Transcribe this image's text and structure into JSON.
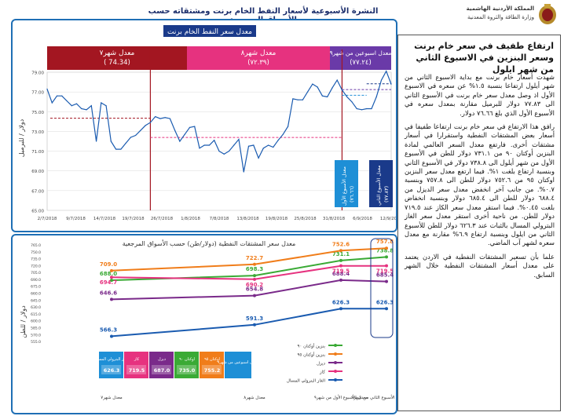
{
  "header": {
    "title": "النشرة الأسبوعية لأسعار النفط الخام برنت ومشتقاته حسب الأسواق المرجعية",
    "ministry_line1": "المملكة الأردنية الهاشمية",
    "ministry_line2": "وزارة الطاقة والثروة المعدنية"
  },
  "top_chart": {
    "title": "معدل سعر النفط الخام برنت",
    "ylabel": "دولار / للبرميل",
    "periods": [
      {
        "label": "معدل شهر٧",
        "value": "( 74.34)",
        "color": "#a31621"
      },
      {
        "label": "معدل شهر٨",
        "value": "(٧٢.٣٩)",
        "color": "#e6327f"
      },
      {
        "label": "معدل اسبوعين من شهر٩",
        "value": "(٧٧.٢٤)",
        "color": "#6a3aa8"
      }
    ],
    "week_boxes": [
      {
        "label": "معدل الأسبوع الأول",
        "value": "(٧٦.٦٦)",
        "color": "#1e8fd6"
      },
      {
        "label": "معدل الأسبوع الثاني",
        "value": "(٧٧.٨٣)",
        "color": "#1a3a8a"
      }
    ]
  },
  "chart_data": [
    {
      "type": "line",
      "title": "معدل سعر النفط الخام برنت",
      "ylabel": "دولار / للبرميل",
      "ylim": [
        65.0,
        79.0
      ],
      "yticks": [
        "79.00",
        "77.00",
        "75.00",
        "73.00",
        "71.00",
        "69.00",
        "67.00",
        "65.00"
      ],
      "xticks": [
        "2/7/2018",
        "9/7/2018",
        "14/7/2018",
        "19/7/2018",
        "26/7/2018",
        "1/8/2018",
        "7/8/2018",
        "13/8/2018",
        "19/8/2018",
        "25/8/2018",
        "31/8/2018",
        "6/9/2018",
        "12/9/2018"
      ],
      "series": [
        {
          "values": [
            77.3,
            75.9,
            76.6,
            76.6,
            76.1,
            75.6,
            75.8,
            75.3,
            75.2,
            75.6,
            72.0,
            75.9,
            75.6,
            72.0,
            71.2,
            71.2,
            71.8,
            72.4,
            72.6,
            73.1,
            73.6,
            73.9,
            74.5,
            74.3,
            74.4,
            74.3,
            73.1,
            72.0,
            72.7,
            73.4,
            73.5,
            71.3,
            71.6,
            71.6,
            72.1,
            71.0,
            70.7,
            71.0,
            71.6,
            72.2,
            68.9,
            71.5,
            71.6,
            70.3,
            71.3,
            71.6,
            71.4,
            72.1,
            72.7,
            73.5,
            76.3,
            76.2,
            76.2,
            77.0,
            77.8,
            77.5,
            76.6,
            76.5,
            77.4,
            78.2,
            77.2,
            76.5,
            76.0,
            75.3,
            75.2,
            75.3,
            75.3,
            76.5,
            78.2,
            79.1,
            77.8
          ]
        }
      ],
      "averages": {
        "july": 74.34,
        "august": 72.39,
        "sept_two_weeks": 77.24,
        "week1": 76.66,
        "week2": 77.83
      }
    },
    {
      "type": "line",
      "title": "معدل سعر المشتقات النفطية (دولار/طن) حسب الأسواق المرجعية",
      "ylabel": "دولار / للطن",
      "ylim": [
        550.0,
        765.0
      ],
      "yticks": [
        "765.0",
        "750.0",
        "735.0",
        "720.0",
        "705.0",
        "690.0",
        "675.0",
        "660.0",
        "645.0",
        "630.0",
        "615.0",
        "600.0",
        "585.0",
        "570.0",
        "555.0"
      ],
      "categories": [
        "معدل شهر٧",
        "معدل شهر٨",
        "معدل الأسبوع الأول من شهر٩",
        "معدل الأسبوع الثاني من شهر٩"
      ],
      "series": [
        {
          "name": "بنزين أوكتان ٩٠",
          "color": "#3aaa35",
          "values": [
            688.0,
            698.3,
            731.1,
            738.8
          ]
        },
        {
          "name": "بنزين أوكتان ٩٥",
          "color": "#f07d1a",
          "values": [
            709.0,
            722.7,
            752.6,
            757.8
          ]
        },
        {
          "name": "ديزل",
          "color": "#7a2a8a",
          "values": [
            646.6,
            654.8,
            688.4,
            685.4
          ]
        },
        {
          "name": "كاز",
          "color": "#e6327f",
          "values": [
            694.7,
            690.2,
            719.5,
            719.5
          ]
        },
        {
          "name": "الغاز البترولي المسال",
          "color": "#1a5bb0",
          "values": [
            566.3,
            591.3,
            626.3,
            626.3
          ]
        }
      ]
    }
  ],
  "bottom_chart": {
    "title": "معدل سعر المشتقات النفطية (دولار/طن) حسب الأسواق المرجعية",
    "ylabel": "دولار / للطن",
    "data_labels": [
      [
        "688.0",
        "698.3",
        "731.1",
        "738.8"
      ],
      [
        "709.0",
        "722.7",
        "752.6",
        "757.8"
      ],
      [
        "646.6",
        "654.8",
        "688.4",
        "685.4"
      ],
      [
        "694.7",
        "690.2",
        "719.5",
        "719.5"
      ],
      [
        "566.3",
        "591.3",
        "626.3",
        "626.3"
      ]
    ],
    "table_caption": "معدل اسبوعين من شهر٩",
    "table": [
      {
        "label": "الغاز البترولي المسال",
        "value": "626.3",
        "color": "#1e8fd6"
      },
      {
        "label": "كاز",
        "value": "719.5",
        "color": "#e6327f"
      },
      {
        "label": "ديزل",
        "value": "687.0",
        "color": "#7a2a8a"
      },
      {
        "label": "اوكتان ٩٠",
        "value": "735.0",
        "color": "#3aaa35"
      },
      {
        "label": "اوكتان ٩٥",
        "value": "755.2",
        "color": "#f07d1a"
      }
    ]
  },
  "article": {
    "headline": "ارتفاع طفيف في سعر خام برنت وسعر البنزين في الاسبوع الثاني من شهر ايلول",
    "paragraphs": [
      "شهدت أسعار خام برنت مع بداية الاسبوع الثاني من شهر أيلول ارتفاعا بنسبة ١.٥% عن سعره في الاسبوع الأول اذ وصل معدل سعر خام برنت في الأسبوع الثاني الى ٧٧.٨٣ دولار للبرميل مقارنة بمعدل سعره في الأسبوع الأول الذي بلغ ٧٦.٦٦ دولار.",
      "رافق هذا الارتفاع في سعر خام برنت ارتفاعا طفيفا في أسعار بعض المشتقات النفطية واستقرارا في أسعار مشتقات أخرى. فارتفع معدل السعر العالمي لمادة البنزين أوكتان ٩٠ من ٧٣١.١ دولار للطن في الأسبوع الأول من شهر أيلول الى ٧٣٨.٨ دولار في الأسبوع الثاني وبنسبة ارتفاع بلغت ١%. فيما ارتفع معدل سعر البنزين اوكتان ٩٥ من ٧٥٢.٦ دولار للطن الى ٧٥٧.٨ وبنسبة ٠.٧%. من جانب آخر انخفض معدل سعر الديزل من ٦٨٨.٤ دولار للطن الى ٦٨٥.٤ دولار وبنسبة انخفاض بلغت ٠.٤٥%. فيما استقر معدل سعر الكاز عند ٧١٩.٥ دولار للطن. من ناحية أخرى استقر معدل سعر الغاز البترولي المسال بالثبات عند ٦٢٦.٣ دولار للطن للأسبوع الثاني من ايلول وبنسبة ارتفاع ٦.٩% مقارنة مع معدل سعره لشهر آب الماضي.",
      "علما بأن تسعير المشتقات النفطية في الاردن يعتمد على معدل أسعار المشتقات النفطية خلال الشهر السابق."
    ]
  }
}
